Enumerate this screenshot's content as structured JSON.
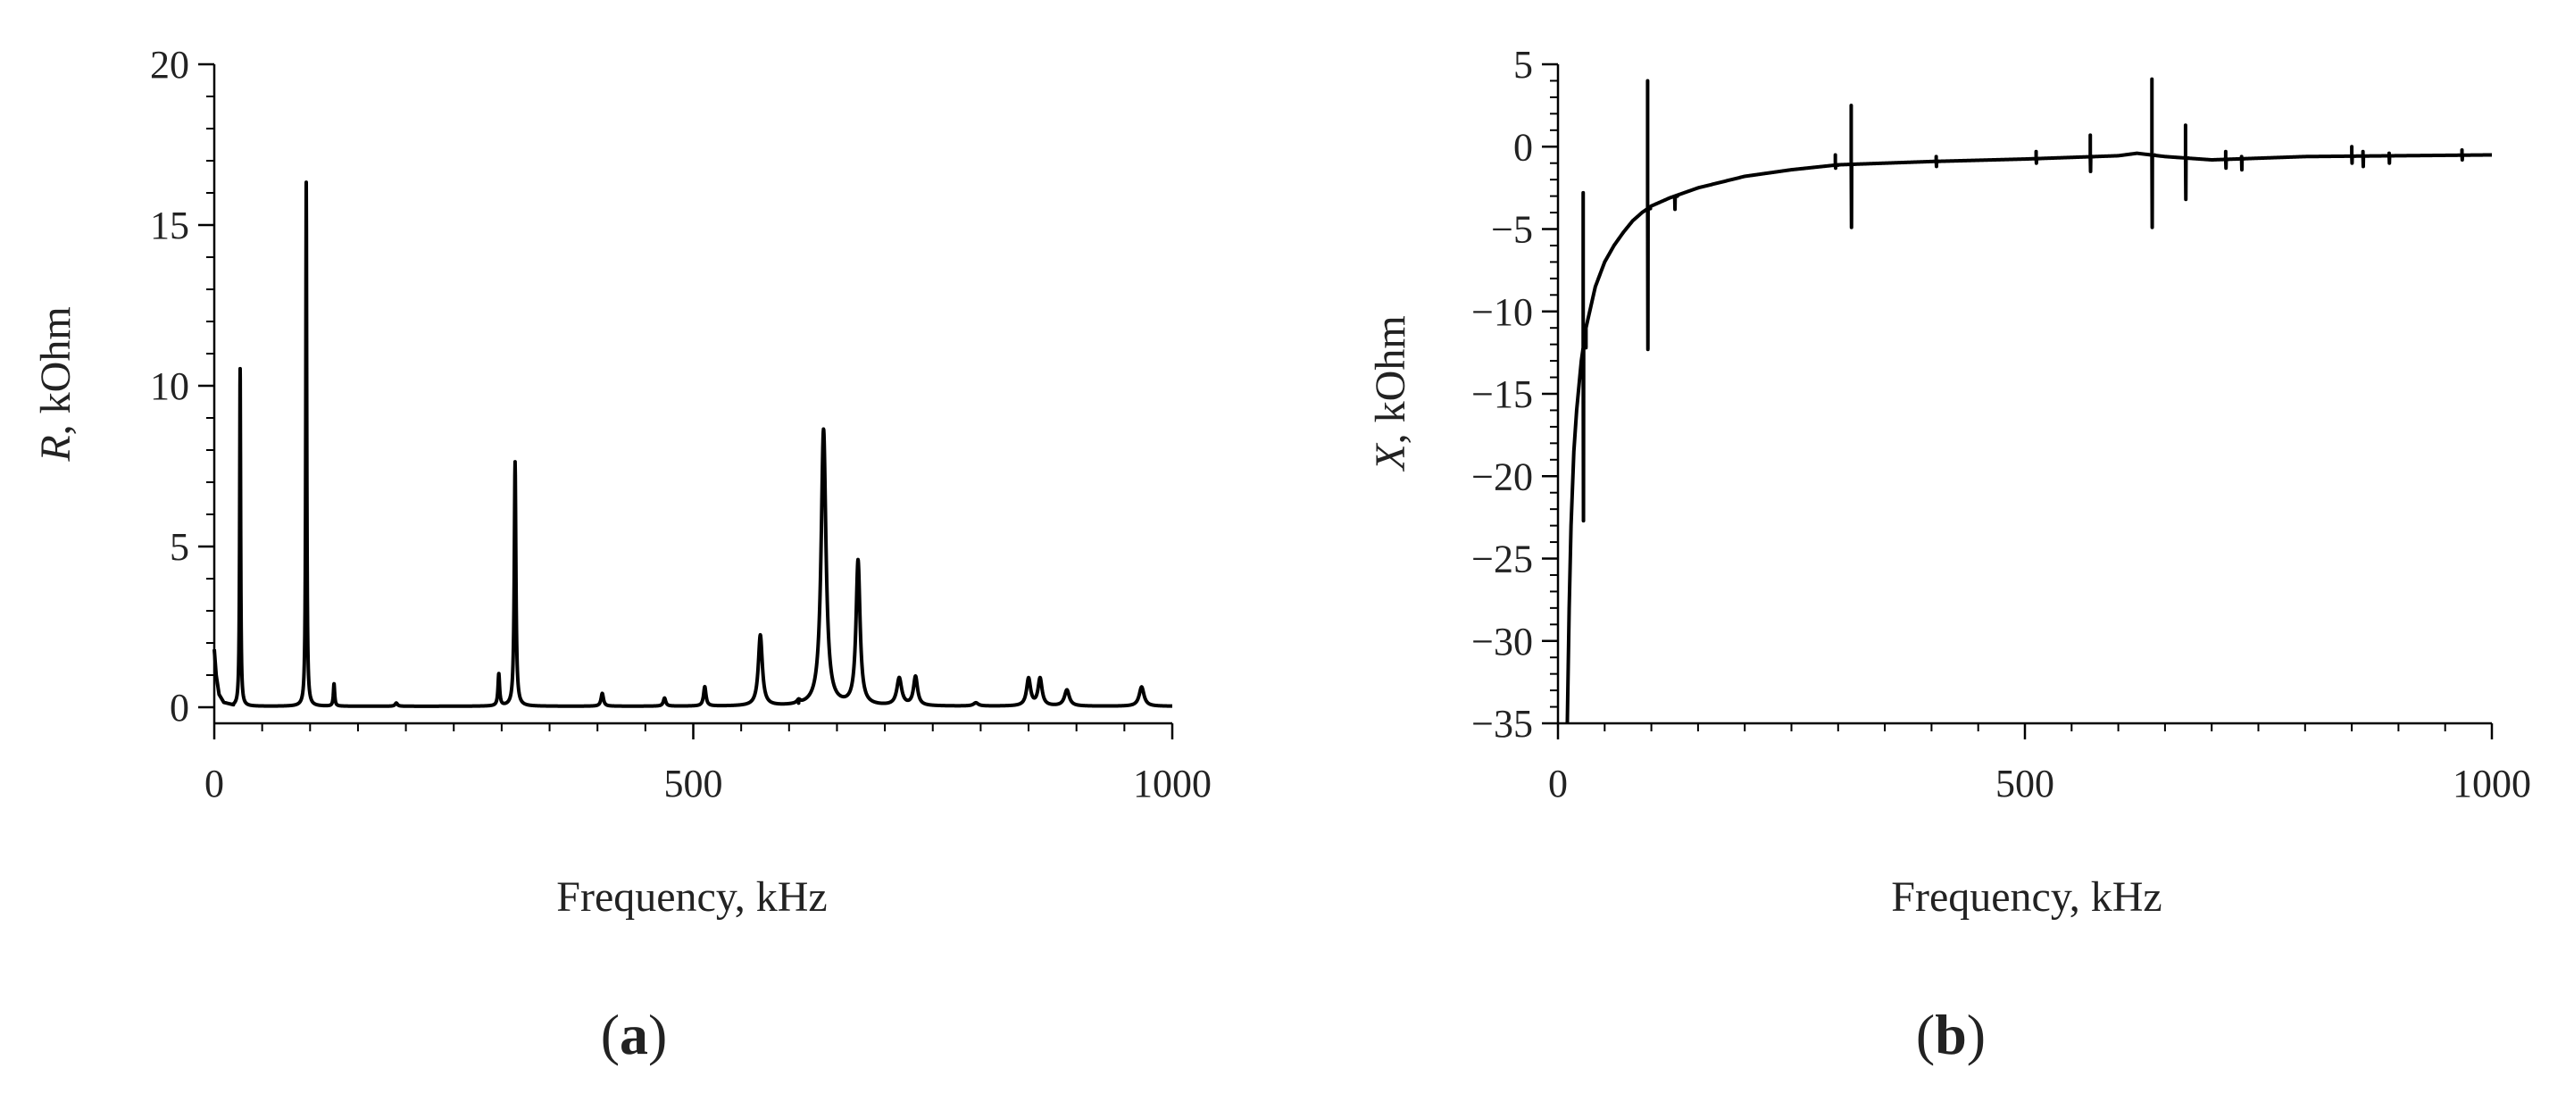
{
  "panels": [
    {
      "id": "a",
      "label_open": "(",
      "label_letter": "a",
      "label_close": ")"
    },
    {
      "id": "b",
      "label_open": "(",
      "label_letter": "b",
      "label_close": ")"
    }
  ],
  "chart_data": [
    {
      "type": "line",
      "panel": "a",
      "xlabel": "Frequency, kHz",
      "ylabel_symbol": "R",
      "ylabel_rest": ", kOhm",
      "xlim": [
        0,
        1000
      ],
      "ylim": [
        -0.5,
        20
      ],
      "xticks": [
        0,
        500,
        1000
      ],
      "yticks": [
        0,
        5,
        10,
        15,
        20
      ],
      "ytick_labels": [
        "0",
        "5",
        "10",
        "15",
        "20"
      ],
      "grid": false,
      "baseline": 0.03,
      "start": [
        [
          0,
          1.8
        ],
        [
          2,
          1.0
        ],
        [
          5,
          0.4
        ],
        [
          10,
          0.15
        ],
        [
          20,
          0.08
        ]
      ],
      "peaks": [
        {
          "f": 27,
          "v": 10.5,
          "w": 0.6
        },
        {
          "f": 96,
          "v": 16.3,
          "w": 0.6
        },
        {
          "f": 125,
          "v": 0.7,
          "w": 0.8
        },
        {
          "f": 190,
          "v": 0.1,
          "w": 1.5
        },
        {
          "f": 297,
          "v": 1.0,
          "w": 1.0
        },
        {
          "f": 314,
          "v": 7.6,
          "w": 1.0
        },
        {
          "f": 405,
          "v": 0.4,
          "w": 1.5
        },
        {
          "f": 470,
          "v": 0.25,
          "w": 1.5
        },
        {
          "f": 512,
          "v": 0.6,
          "w": 1.5
        },
        {
          "f": 570,
          "v": 2.2,
          "w": 2.5
        },
        {
          "f": 610,
          "v": 0.1,
          "w": 2.0
        },
        {
          "f": 636,
          "v": 8.6,
          "w": 3.0
        },
        {
          "f": 672,
          "v": 4.5,
          "w": 2.5
        },
        {
          "f": 715,
          "v": 0.85,
          "w": 3.0
        },
        {
          "f": 732,
          "v": 0.9,
          "w": 2.5
        },
        {
          "f": 795,
          "v": 0.1,
          "w": 3.0
        },
        {
          "f": 850,
          "v": 0.85,
          "w": 2.5
        },
        {
          "f": 862,
          "v": 0.85,
          "w": 2.5
        },
        {
          "f": 890,
          "v": 0.5,
          "w": 3.0
        },
        {
          "f": 968,
          "v": 0.6,
          "w": 3.0
        }
      ]
    },
    {
      "type": "line",
      "panel": "b",
      "xlabel": "Frequency, kHz",
      "ylabel_symbol": "X",
      "ylabel_rest": ", kOhm",
      "xlim": [
        0,
        1000
      ],
      "ylim": [
        -35,
        5
      ],
      "xticks": [
        0,
        500,
        1000
      ],
      "yticks": [
        -35,
        -30,
        -25,
        -20,
        -15,
        -10,
        -5,
        0,
        5
      ],
      "ytick_labels": [
        "−35",
        "−30",
        "−25",
        "−20",
        "−15",
        "−10",
        "−5",
        "0",
        "5"
      ],
      "grid": false,
      "baseline": [
        [
          10,
          -35
        ],
        [
          12,
          -28
        ],
        [
          14,
          -23
        ],
        [
          17,
          -18.5
        ],
        [
          20,
          -16
        ],
        [
          25,
          -13
        ],
        [
          30,
          -11
        ],
        [
          40,
          -8.5
        ],
        [
          50,
          -7
        ],
        [
          60,
          -6
        ],
        [
          70,
          -5.2
        ],
        [
          80,
          -4.5
        ],
        [
          90,
          -4.0
        ],
        [
          100,
          -3.6
        ],
        [
          120,
          -3.1
        ],
        [
          150,
          -2.5
        ],
        [
          200,
          -1.8
        ],
        [
          250,
          -1.4
        ],
        [
          300,
          -1.1
        ],
        [
          400,
          -0.9
        ],
        [
          500,
          -0.75
        ],
        [
          600,
          -0.55
        ],
        [
          620,
          -0.4
        ],
        [
          650,
          -0.6
        ],
        [
          700,
          -0.8
        ],
        [
          800,
          -0.6
        ],
        [
          900,
          -0.55
        ],
        [
          1000,
          -0.5
        ]
      ],
      "resonances": [
        {
          "f": 27,
          "top": -2.8,
          "bottom": -22.7
        },
        {
          "f": 96,
          "top": 4.0,
          "bottom": -12.3
        },
        {
          "f": 125,
          "top": -3.0,
          "bottom": -3.8
        },
        {
          "f": 297,
          "top": -0.5,
          "bottom": -1.3
        },
        {
          "f": 314,
          "top": 2.5,
          "bottom": -4.9
        },
        {
          "f": 405,
          "top": -0.6,
          "bottom": -1.2
        },
        {
          "f": 512,
          "top": -0.3,
          "bottom": -1.0
        },
        {
          "f": 570,
          "top": 0.7,
          "bottom": -1.5
        },
        {
          "f": 636,
          "top": 4.1,
          "bottom": -4.9
        },
        {
          "f": 672,
          "top": 1.3,
          "bottom": -3.2
        },
        {
          "f": 715,
          "top": -0.3,
          "bottom": -1.3
        },
        {
          "f": 732,
          "top": -0.6,
          "bottom": -1.4
        },
        {
          "f": 850,
          "top": 0.0,
          "bottom": -1.0
        },
        {
          "f": 862,
          "top": -0.3,
          "bottom": -1.2
        },
        {
          "f": 890,
          "top": -0.4,
          "bottom": -1.0
        },
        {
          "f": 968,
          "top": -0.2,
          "bottom": -0.8
        }
      ]
    }
  ]
}
